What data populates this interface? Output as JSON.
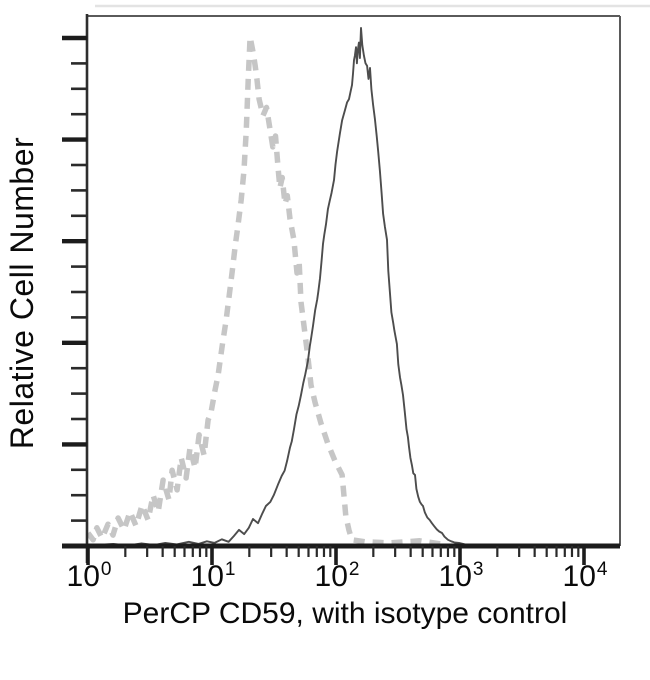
{
  "figure": {
    "background": "#ffffff"
  },
  "chart_data": {
    "type": "line",
    "subtype": "flow-cytometry-histogram",
    "title": "",
    "xlabel": "PerCP CD59, with isotype control",
    "ylabel": "Relative Cell Number",
    "x_scale": "log",
    "x_range": [
      1,
      10000
    ],
    "ylim": [
      0,
      100
    ],
    "grid": false,
    "legend_position": "none",
    "x_ticks": [
      {
        "base": "10",
        "exp": "0"
      },
      {
        "base": "10",
        "exp": "1"
      },
      {
        "base": "10",
        "exp": "2"
      },
      {
        "base": "10",
        "exp": "3"
      },
      {
        "base": "10",
        "exp": "4"
      }
    ],
    "series": [
      {
        "name": "isotype control",
        "line_style": "dashed",
        "color": "#c6c6c6",
        "stroke_width": 5.5,
        "peak_x": 20,
        "peak_height": 98,
        "points": [
          [
            1.0,
            2.5
          ],
          [
            1.1,
            1.2
          ],
          [
            1.18,
            3.5
          ],
          [
            1.3,
            1.5
          ],
          [
            1.45,
            4.2
          ],
          [
            1.59,
            2.1
          ],
          [
            1.75,
            5.4
          ],
          [
            1.95,
            3.1
          ],
          [
            2.18,
            6.6
          ],
          [
            2.44,
            3.9
          ],
          [
            2.73,
            7.9
          ],
          [
            3.05,
            5.0
          ],
          [
            3.35,
            9.8
          ],
          [
            3.68,
            6.6
          ],
          [
            4.03,
            12.7
          ],
          [
            4.5,
            8.9
          ],
          [
            4.77,
            14.6
          ],
          [
            5.23,
            10.8
          ],
          [
            5.64,
            17.0
          ],
          [
            6.18,
            13.1
          ],
          [
            6.65,
            18.9
          ],
          [
            7.3,
            15.0
          ],
          [
            7.87,
            21.4
          ],
          [
            8.63,
            17.5
          ],
          [
            9.3,
            24.3
          ],
          [
            9.8,
            25.6
          ],
          [
            10.6,
            30.1
          ],
          [
            11.2,
            32.9
          ],
          [
            12.1,
            38.7
          ],
          [
            13.0,
            43.5
          ],
          [
            13.8,
            48.4
          ],
          [
            14.6,
            53.2
          ],
          [
            15.4,
            58.0
          ],
          [
            16.2,
            61.8
          ],
          [
            17.2,
            66.7
          ],
          [
            18.1,
            72.4
          ],
          [
            18.9,
            80.2
          ],
          [
            19.6,
            89.8
          ],
          [
            20.3,
            98.1
          ],
          [
            21.5,
            95.0
          ],
          [
            22.3,
            92.5
          ],
          [
            23.0,
            90.0
          ],
          [
            24.0,
            86.1
          ],
          [
            25.8,
            82.9
          ],
          [
            27.5,
            84.5
          ],
          [
            29.4,
            80.2
          ],
          [
            30.9,
            76.9
          ],
          [
            32.5,
            79.0
          ],
          [
            34.1,
            72.8
          ],
          [
            35.3,
            69.0
          ],
          [
            36.8,
            71.0
          ],
          [
            38.8,
            65.9
          ],
          [
            40.5,
            67.5
          ],
          [
            42.6,
            63.0
          ],
          [
            45.8,
            59.0
          ],
          [
            48.5,
            52.6
          ],
          [
            50.5,
            54.5
          ],
          [
            52.2,
            47.0
          ],
          [
            55.2,
            42.4
          ],
          [
            59.4,
            36.4
          ],
          [
            62.9,
            31.0
          ],
          [
            67.7,
            27.7
          ],
          [
            75.6,
            23.7
          ],
          [
            86.1,
            19.7
          ],
          [
            98.2,
            16.4
          ],
          [
            112.0,
            13.7
          ],
          [
            120.0,
            5.8
          ],
          [
            127.0,
            3.1
          ],
          [
            134.0,
            1.2
          ],
          [
            171.0,
            0.8
          ],
          [
            272.0,
            0.6
          ],
          [
            473.0,
            1.0
          ],
          [
            691.0,
            0.4
          ]
        ]
      },
      {
        "name": "PerCP CD59",
        "line_style": "solid",
        "color": "#4d4d4d",
        "stroke_width": 1.9,
        "peak_x": 159,
        "peak_height": 100,
        "points": [
          [
            1.0,
            0.1
          ],
          [
            1.6,
            0.4
          ],
          [
            2.1,
            0.1
          ],
          [
            2.7,
            0.5
          ],
          [
            3.4,
            0.2
          ],
          [
            4.2,
            0.6
          ],
          [
            5.2,
            0.3
          ],
          [
            6.5,
            0.8
          ],
          [
            7.8,
            0.4
          ],
          [
            9.1,
            0.9
          ],
          [
            10.5,
            0.6
          ],
          [
            12.0,
            1.3
          ],
          [
            13.6,
            0.8
          ],
          [
            15.0,
            1.9
          ],
          [
            16.5,
            3.1
          ],
          [
            18.2,
            2.3
          ],
          [
            19.8,
            3.5
          ],
          [
            21.4,
            5.2
          ],
          [
            23.5,
            4.4
          ],
          [
            25.5,
            6.3
          ],
          [
            27.2,
            7.7
          ],
          [
            29.5,
            8.5
          ],
          [
            31.5,
            9.8
          ],
          [
            34.0,
            11.8
          ],
          [
            36.5,
            13.5
          ],
          [
            38.5,
            14.5
          ],
          [
            40.3,
            16.4
          ],
          [
            42.5,
            18.9
          ],
          [
            44.0,
            20.2
          ],
          [
            45.8,
            22.4
          ],
          [
            48.0,
            25.4
          ],
          [
            50.0,
            27.0
          ],
          [
            52.2,
            29.1
          ],
          [
            54.5,
            31.4
          ],
          [
            56.5,
            33.1
          ],
          [
            59.4,
            35.6
          ],
          [
            61.5,
            38.5
          ],
          [
            63.0,
            40.0
          ],
          [
            65.3,
            42.4
          ],
          [
            68.0,
            45.5
          ],
          [
            70.5,
            47.5
          ],
          [
            72.0,
            49.0
          ],
          [
            74.3,
            51.6
          ],
          [
            76.5,
            55.0
          ],
          [
            78.5,
            58.2
          ],
          [
            80.5,
            60.0
          ],
          [
            83.0,
            62.0
          ],
          [
            86.1,
            64.9
          ],
          [
            89.0,
            66.5
          ],
          [
            92.0,
            68.0
          ],
          [
            96.4,
            70.5
          ],
          [
            99.0,
            73.5
          ],
          [
            102.0,
            76.0
          ],
          [
            107.7,
            79.6
          ],
          [
            112.0,
            82.0
          ],
          [
            118.2,
            84.0
          ],
          [
            123.0,
            85.5
          ],
          [
            127.3,
            86.1
          ],
          [
            131.0,
            87.5
          ],
          [
            134.6,
            88.8
          ],
          [
            137.0,
            91.0
          ],
          [
            139.6,
            93.6
          ],
          [
            142.0,
            94.5
          ],
          [
            144.9,
            96.1
          ],
          [
            147.5,
            93.0
          ],
          [
            150.0,
            95.5
          ],
          [
            153.0,
            97.0
          ],
          [
            156.0,
            94.0
          ],
          [
            159.2,
            99.8
          ],
          [
            163.0,
            96.5
          ],
          [
            168.0,
            94.5
          ],
          [
            173.0,
            93.0
          ],
          [
            178.0,
            92.5
          ],
          [
            183.0,
            90.0
          ],
          [
            188.0,
            92.1
          ],
          [
            193.0,
            88.0
          ],
          [
            199.0,
            85.0
          ],
          [
            206.0,
            82.3
          ],
          [
            213.0,
            79.0
          ],
          [
            219.0,
            76.0
          ],
          [
            226.0,
            72.3
          ],
          [
            233.0,
            68.0
          ],
          [
            240.0,
            64.0
          ],
          [
            248.0,
            61.5
          ],
          [
            258.0,
            59.0
          ],
          [
            264.0,
            53.0
          ],
          [
            272.0,
            48.9
          ],
          [
            280.0,
            45.0
          ],
          [
            289.0,
            43.0
          ],
          [
            296.0,
            41.5
          ],
          [
            310.0,
            38.9
          ],
          [
            318.0,
            35.0
          ],
          [
            328.0,
            32.5
          ],
          [
            337.0,
            31.0
          ],
          [
            347.0,
            29.1
          ],
          [
            358.0,
            26.0
          ],
          [
            370.0,
            22.5
          ],
          [
            380.0,
            21.0
          ],
          [
            388.0,
            19.1
          ],
          [
            398.0,
            17.0
          ],
          [
            410.0,
            15.5
          ],
          [
            420.0,
            14.0
          ],
          [
            434.0,
            13.7
          ],
          [
            445.0,
            11.0
          ],
          [
            460.0,
            9.5
          ],
          [
            475.0,
            8.5
          ],
          [
            490.0,
            8.0
          ],
          [
            503.0,
            7.7
          ],
          [
            520.0,
            6.5
          ],
          [
            545.0,
            5.5
          ],
          [
            570.0,
            5.0
          ],
          [
            594.0,
            4.4
          ],
          [
            620.0,
            3.8
          ],
          [
            650.0,
            3.2
          ],
          [
            680.0,
            2.8
          ],
          [
            716.0,
            2.5
          ],
          [
            750.0,
            1.8
          ],
          [
            800.0,
            1.2
          ],
          [
            850.0,
            0.9
          ],
          [
            900.0,
            0.7
          ],
          [
            982.0,
            0.6
          ],
          [
            1100.0,
            0.3
          ],
          [
            1300.0,
            0.2
          ],
          [
            1600.0,
            0.1
          ],
          [
            2500.0,
            0.1
          ],
          [
            5000.0,
            0.1
          ],
          [
            9500.0,
            0.1
          ]
        ]
      }
    ]
  }
}
